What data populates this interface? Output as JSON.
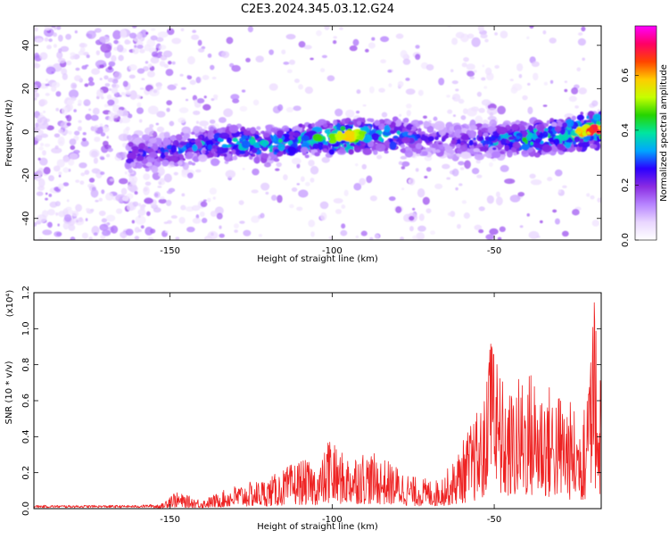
{
  "chart_data": [
    {
      "type": "heatmap",
      "title": "C2E3.2024.345.03.12.G24",
      "xlabel": "Height of straight line (km)",
      "ylabel": "Frequency (Hz)",
      "xlim": [
        -192,
        -17
      ],
      "ylim": [
        -50,
        49
      ],
      "xticks": [
        "-150",
        "-100",
        "-50"
      ],
      "yticks": [
        "-40",
        "-20",
        "0",
        "20",
        "40"
      ],
      "colorbar": {
        "label": "Normalized spectral amplitude",
        "range": [
          0,
          0.78
        ],
        "ticks": [
          "0.0",
          "0.2",
          "0.4",
          "0.6"
        ],
        "colors": [
          "#ffffff",
          "#e9d6ff",
          "#b784ff",
          "#8a2be2",
          "#2b00ff",
          "#00a6ff",
          "#00e5a0",
          "#26d400",
          "#c6ff00",
          "#ffcc00",
          "#ff4400",
          "#ff0066",
          "#ff00ff"
        ]
      },
      "ridge": [
        {
          "x": -162,
          "y": -10,
          "amp": 0.28
        },
        {
          "x": -150,
          "y": -9,
          "amp": 0.3
        },
        {
          "x": -140,
          "y": -6,
          "amp": 0.34
        },
        {
          "x": -130,
          "y": -5,
          "amp": 0.38
        },
        {
          "x": -120,
          "y": -6,
          "amp": 0.4
        },
        {
          "x": -110,
          "y": -4,
          "amp": 0.42
        },
        {
          "x": -100,
          "y": -3,
          "amp": 0.46
        },
        {
          "x": -95,
          "y": -2,
          "amp": 0.56
        },
        {
          "x": -90,
          "y": -1,
          "amp": 0.45
        },
        {
          "x": -80,
          "y": -2,
          "amp": 0.36
        },
        {
          "x": -70,
          "y": -3,
          "amp": 0.25
        },
        {
          "x": -60,
          "y": -4,
          "amp": 0.26
        },
        {
          "x": -50,
          "y": -4,
          "amp": 0.34
        },
        {
          "x": -40,
          "y": -3,
          "amp": 0.42
        },
        {
          "x": -30,
          "y": -2,
          "amp": 0.46
        },
        {
          "x": -20,
          "y": 1,
          "amp": 0.62
        }
      ]
    },
    {
      "type": "line",
      "xlabel": "Height of straight line (km)",
      "ylabel": "SNR (10 * v/v)",
      "yscale_label": "(x10⁴)",
      "xlim": [
        -192,
        -17
      ],
      "ylim": [
        0,
        1.2
      ],
      "xticks": [
        "-150",
        "-100",
        "-50"
      ],
      "yticks": [
        "0.0",
        "0.2",
        "0.4",
        "0.6",
        "0.8",
        "1.0",
        "1.2"
      ],
      "series": [
        {
          "color": "#ee2222",
          "envelope": [
            {
              "x": -192,
              "y": 0.02
            },
            {
              "x": -160,
              "y": 0.02
            },
            {
              "x": -152,
              "y": 0.03
            },
            {
              "x": -150,
              "y": 0.1
            },
            {
              "x": -140,
              "y": 0.05
            },
            {
              "x": -130,
              "y": 0.13
            },
            {
              "x": -120,
              "y": 0.17
            },
            {
              "x": -115,
              "y": 0.22
            },
            {
              "x": -110,
              "y": 0.28
            },
            {
              "x": -104,
              "y": 0.24
            },
            {
              "x": -101,
              "y": 0.38
            },
            {
              "x": -96,
              "y": 0.3
            },
            {
              "x": -91,
              "y": 0.33
            },
            {
              "x": -86,
              "y": 0.3
            },
            {
              "x": -80,
              "y": 0.24
            },
            {
              "x": -75,
              "y": 0.18
            },
            {
              "x": -68,
              "y": 0.16
            },
            {
              "x": -63,
              "y": 0.25
            },
            {
              "x": -58,
              "y": 0.45
            },
            {
              "x": -53,
              "y": 0.62
            },
            {
              "x": -51,
              "y": 0.96
            },
            {
              "x": -46,
              "y": 0.64
            },
            {
              "x": -40,
              "y": 0.8
            },
            {
              "x": -35,
              "y": 0.72
            },
            {
              "x": -28,
              "y": 0.64
            },
            {
              "x": -23,
              "y": 0.5
            },
            {
              "x": -21,
              "y": 0.67
            },
            {
              "x": -19,
              "y": 1.19
            },
            {
              "x": -17,
              "y": 0.86
            }
          ]
        }
      ]
    }
  ]
}
